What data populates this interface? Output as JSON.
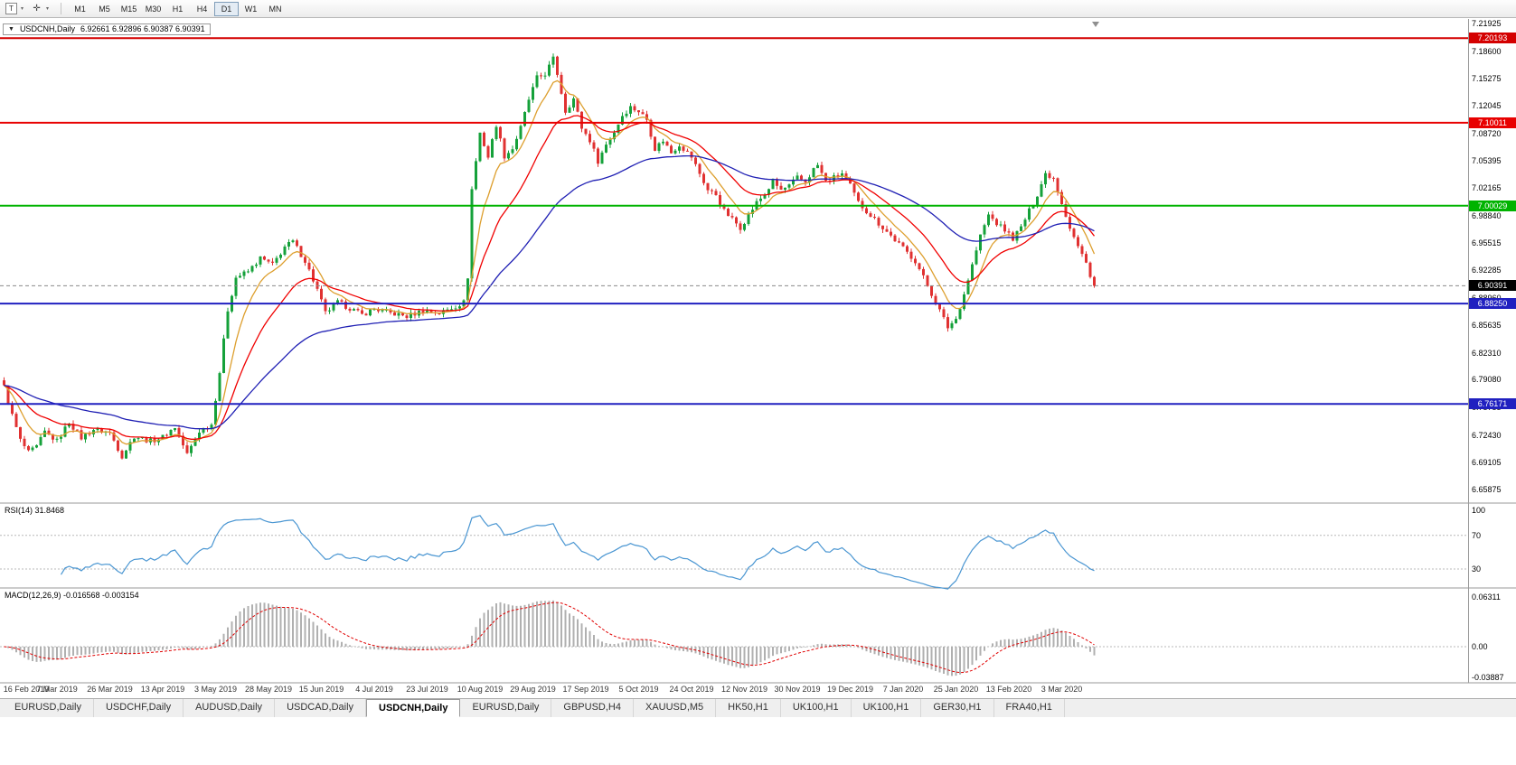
{
  "toolbar": {
    "tools": [
      {
        "name": "chart-type-tool",
        "glyph": "T"
      },
      {
        "name": "crosshair-tool",
        "glyph": "✛"
      }
    ],
    "caret_glyph": "▾",
    "timeframes": [
      "M1",
      "M5",
      "M15",
      "M30",
      "H1",
      "H4",
      "D1",
      "W1",
      "MN"
    ],
    "active_timeframe": "D1"
  },
  "window": {
    "one_click_glyph": "▼",
    "symbol_title": "USDCNH,Daily",
    "ohlc": "6.92661 6.92896 6.90387 6.90391"
  },
  "price_axis": {
    "labels": [
      "7.21925",
      "7.18600",
      "7.15275",
      "7.12045",
      "7.08720",
      "7.05395",
      "7.02165",
      "6.98840",
      "6.95515",
      "6.92285",
      "6.88960",
      "6.85635",
      "6.82310",
      "6.79080",
      "6.75755",
      "6.72430",
      "6.69105",
      "6.65875"
    ]
  },
  "hlines": [
    {
      "price": 7.20193,
      "label": "7.20193",
      "color": "#d40000",
      "width": 2
    },
    {
      "price": 7.10011,
      "label": "7.10011",
      "color": "#e80000",
      "width": 2
    },
    {
      "price": 7.00029,
      "label": "7.00029",
      "color": "#00b300",
      "width": 2
    },
    {
      "price": 6.8825,
      "label": "6.88250",
      "color": "#2020c0",
      "width": 2
    },
    {
      "price": 6.76171,
      "label": "6.76171",
      "color": "#2020c0",
      "width": 2
    }
  ],
  "current_price": {
    "value": 6.90391,
    "label": "6.90391",
    "bg": "#000000"
  },
  "date_axis": [
    "16 Feb 2019",
    "7 Mar 2019",
    "26 Mar 2019",
    "13 Apr 2019",
    "3 May 2019",
    "28 May 2019",
    "15 Jun 2019",
    "4 Jul 2019",
    "23 Jul 2019",
    "10 Aug 2019",
    "29 Aug 2019",
    "17 Sep 2019",
    "5 Oct 2019",
    "24 Oct 2019",
    "12 Nov 2019",
    "30 Nov 2019",
    "19 Dec 2019",
    "7 Jan 2020",
    "25 Jan 2020",
    "13 Feb 2020",
    "3 Mar 2020"
  ],
  "rsi_panel": {
    "title": "RSI(14) 31.8468",
    "period": 14,
    "current": 31.8468,
    "axis_labels": [
      "100",
      "70",
      "30"
    ],
    "levels": [
      70,
      30
    ],
    "line_color": "#4a96d2"
  },
  "macd_panel": {
    "title": "MACD(12,26,9) -0.016568 -0.003154",
    "fast": 12,
    "slow": 26,
    "signal": 9,
    "main_value": -0.016568,
    "signal_value": -0.003154,
    "axis_labels": [
      "0.06311",
      "0.00",
      "-0.03887"
    ],
    "hist_color": "#b0b0b0",
    "signal_color": "#e00000"
  },
  "chart_data": {
    "type": "candlestick",
    "symbol": "USDCNH",
    "timeframe": "Daily",
    "count": 269,
    "volatility": 0.0065,
    "price_max": 7.225,
    "price_min": 6.6435,
    "up_color": "#15a13a",
    "down_color": "#e03131",
    "ma_overlays": [
      {
        "period": 8,
        "color": "#dd9f2e"
      },
      {
        "period": 20,
        "color": "#f00000"
      },
      {
        "period": 55,
        "color": "#2020b4"
      }
    ],
    "close_anchors": [
      [
        0,
        6.782
      ],
      [
        2,
        6.748
      ],
      [
        4,
        6.718
      ],
      [
        6,
        6.703
      ],
      [
        8,
        6.71
      ],
      [
        10,
        6.728
      ],
      [
        13,
        6.717
      ],
      [
        16,
        6.74
      ],
      [
        19,
        6.721
      ],
      [
        22,
        6.731
      ],
      [
        26,
        6.727
      ],
      [
        29,
        6.699
      ],
      [
        32,
        6.723
      ],
      [
        36,
        6.717
      ],
      [
        39,
        6.722
      ],
      [
        42,
        6.734
      ],
      [
        45,
        6.701
      ],
      [
        48,
        6.729
      ],
      [
        51,
        6.737
      ],
      [
        53,
        6.8
      ],
      [
        55,
        6.875
      ],
      [
        57,
        6.914
      ],
      [
        60,
        6.921
      ],
      [
        63,
        6.937
      ],
      [
        66,
        6.929
      ],
      [
        69,
        6.951
      ],
      [
        71,
        6.957
      ],
      [
        74,
        6.934
      ],
      [
        77,
        6.899
      ],
      [
        79,
        6.871
      ],
      [
        82,
        6.884
      ],
      [
        85,
        6.877
      ],
      [
        88,
        6.869
      ],
      [
        91,
        6.876
      ],
      [
        95,
        6.871
      ],
      [
        99,
        6.867
      ],
      [
        103,
        6.874
      ],
      [
        107,
        6.871
      ],
      [
        110,
        6.877
      ],
      [
        113,
        6.884
      ],
      [
        114,
        6.915
      ],
      [
        115,
        7.02
      ],
      [
        116,
        7.054
      ],
      [
        117,
        7.088
      ],
      [
        119,
        7.059
      ],
      [
        121,
        7.098
      ],
      [
        123,
        7.06
      ],
      [
        125,
        7.069
      ],
      [
        127,
        7.094
      ],
      [
        129,
        7.128
      ],
      [
        131,
        7.154
      ],
      [
        133,
        7.159
      ],
      [
        135,
        7.177
      ],
      [
        136,
        7.159
      ],
      [
        138,
        7.114
      ],
      [
        140,
        7.129
      ],
      [
        142,
        7.094
      ],
      [
        144,
        7.079
      ],
      [
        146,
        7.054
      ],
      [
        148,
        7.074
      ],
      [
        150,
        7.089
      ],
      [
        152,
        7.109
      ],
      [
        154,
        7.119
      ],
      [
        156,
        7.114
      ],
      [
        158,
        7.104
      ],
      [
        160,
        7.069
      ],
      [
        162,
        7.079
      ],
      [
        164,
        7.064
      ],
      [
        166,
        7.074
      ],
      [
        169,
        7.059
      ],
      [
        171,
        7.039
      ],
      [
        173,
        7.019
      ],
      [
        175,
        7.014
      ],
      [
        177,
        6.994
      ],
      [
        179,
        6.984
      ],
      [
        181,
        6.974
      ],
      [
        183,
        6.989
      ],
      [
        185,
        7.004
      ],
      [
        187,
        7.014
      ],
      [
        189,
        7.029
      ],
      [
        191,
        7.019
      ],
      [
        193,
        7.024
      ],
      [
        195,
        7.034
      ],
      [
        197,
        7.029
      ],
      [
        199,
        7.044
      ],
      [
        200,
        7.049
      ],
      [
        202,
        7.029
      ],
      [
        204,
        7.034
      ],
      [
        206,
        7.039
      ],
      [
        208,
        7.024
      ],
      [
        210,
        7.004
      ],
      [
        212,
        6.994
      ],
      [
        214,
        6.984
      ],
      [
        216,
        6.974
      ],
      [
        218,
        6.964
      ],
      [
        220,
        6.954
      ],
      [
        222,
        6.944
      ],
      [
        224,
        6.934
      ],
      [
        226,
        6.914
      ],
      [
        228,
        6.894
      ],
      [
        230,
        6.874
      ],
      [
        232,
        6.854
      ],
      [
        234,
        6.864
      ],
      [
        236,
        6.894
      ],
      [
        238,
        6.929
      ],
      [
        240,
        6.964
      ],
      [
        242,
        6.989
      ],
      [
        244,
        6.979
      ],
      [
        246,
        6.971
      ],
      [
        248,
        6.961
      ],
      [
        250,
        6.974
      ],
      [
        252,
        6.994
      ],
      [
        254,
        7.014
      ],
      [
        256,
        7.039
      ],
      [
        258,
        7.034
      ],
      [
        260,
        7.004
      ],
      [
        262,
        6.974
      ],
      [
        264,
        6.951
      ],
      [
        266,
        6.931
      ],
      [
        268,
        6.9039
      ]
    ]
  },
  "tabs": {
    "items": [
      "EURUSD,Daily",
      "USDCHF,Daily",
      "AUDUSD,Daily",
      "USDCAD,Daily",
      "USDCNH,Daily",
      "EURUSD,Daily",
      "GBPUSD,H4",
      "XAUUSD,M5",
      "HK50,H1",
      "UK100,H1",
      "UK100,H1",
      "GER30,H1",
      "FRA40,H1"
    ],
    "active_index": 4
  }
}
